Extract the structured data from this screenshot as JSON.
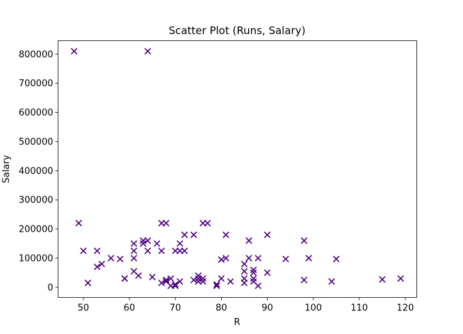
{
  "chart_data": {
    "type": "scatter",
    "title": "Scatter Plot (Runs, Salary)",
    "xlabel": "R",
    "ylabel": "Salary",
    "xlim": [
      44.5,
      122.5
    ],
    "ylim": [
      -35000,
      846000
    ],
    "x_ticks": [
      50,
      60,
      70,
      80,
      90,
      100,
      110,
      120
    ],
    "y_ticks": [
      0,
      100000,
      200000,
      300000,
      400000,
      500000,
      600000,
      700000,
      800000
    ],
    "marker": "x",
    "marker_color": "#4b0082",
    "grid": false,
    "series": [
      {
        "points": [
          [
            48,
            810000
          ],
          [
            64,
            810000
          ],
          [
            49,
            220000
          ],
          [
            50,
            125000
          ],
          [
            51,
            15000
          ],
          [
            53,
            125000
          ],
          [
            53,
            70000
          ],
          [
            54,
            80000
          ],
          [
            56,
            100000
          ],
          [
            58,
            97000
          ],
          [
            59,
            30000
          ],
          [
            59,
            30000
          ],
          [
            61,
            150000
          ],
          [
            61,
            125000
          ],
          [
            61,
            100000
          ],
          [
            61,
            55000
          ],
          [
            62,
            40000
          ],
          [
            63,
            150000
          ],
          [
            63,
            160000
          ],
          [
            64,
            160000
          ],
          [
            64,
            125000
          ],
          [
            65,
            35000
          ],
          [
            66,
            150000
          ],
          [
            67,
            220000
          ],
          [
            67,
            125000
          ],
          [
            67,
            15000
          ],
          [
            68,
            220000
          ],
          [
            68,
            25000
          ],
          [
            68,
            20000
          ],
          [
            69,
            30000
          ],
          [
            69,
            5000
          ],
          [
            70,
            10000
          ],
          [
            70,
            5000
          ],
          [
            70,
            125000
          ],
          [
            71,
            150000
          ],
          [
            71,
            125000
          ],
          [
            71,
            20000
          ],
          [
            72,
            180000
          ],
          [
            72,
            125000
          ],
          [
            74,
            180000
          ],
          [
            74,
            25000
          ],
          [
            75,
            40000
          ],
          [
            75,
            30000
          ],
          [
            75,
            20000
          ],
          [
            76,
            30000
          ],
          [
            76,
            220000
          ],
          [
            76,
            20000
          ],
          [
            77,
            220000
          ],
          [
            79,
            10000
          ],
          [
            79,
            5000
          ],
          [
            80,
            95000
          ],
          [
            80,
            30000
          ],
          [
            81,
            180000
          ],
          [
            81,
            100000
          ],
          [
            82,
            20000
          ],
          [
            85,
            80000
          ],
          [
            85,
            55000
          ],
          [
            85,
            30000
          ],
          [
            85,
            15000
          ],
          [
            86,
            160000
          ],
          [
            86,
            100000
          ],
          [
            87,
            60000
          ],
          [
            87,
            50000
          ],
          [
            87,
            30000
          ],
          [
            87,
            20000
          ],
          [
            88,
            100000
          ],
          [
            88,
            5000
          ],
          [
            90,
            180000
          ],
          [
            90,
            50000
          ],
          [
            94,
            97000
          ],
          [
            98,
            160000
          ],
          [
            98,
            25000
          ],
          [
            99,
            100000
          ],
          [
            104,
            20000
          ],
          [
            105,
            97000
          ],
          [
            115,
            27000
          ],
          [
            119,
            30000
          ]
        ]
      }
    ]
  }
}
